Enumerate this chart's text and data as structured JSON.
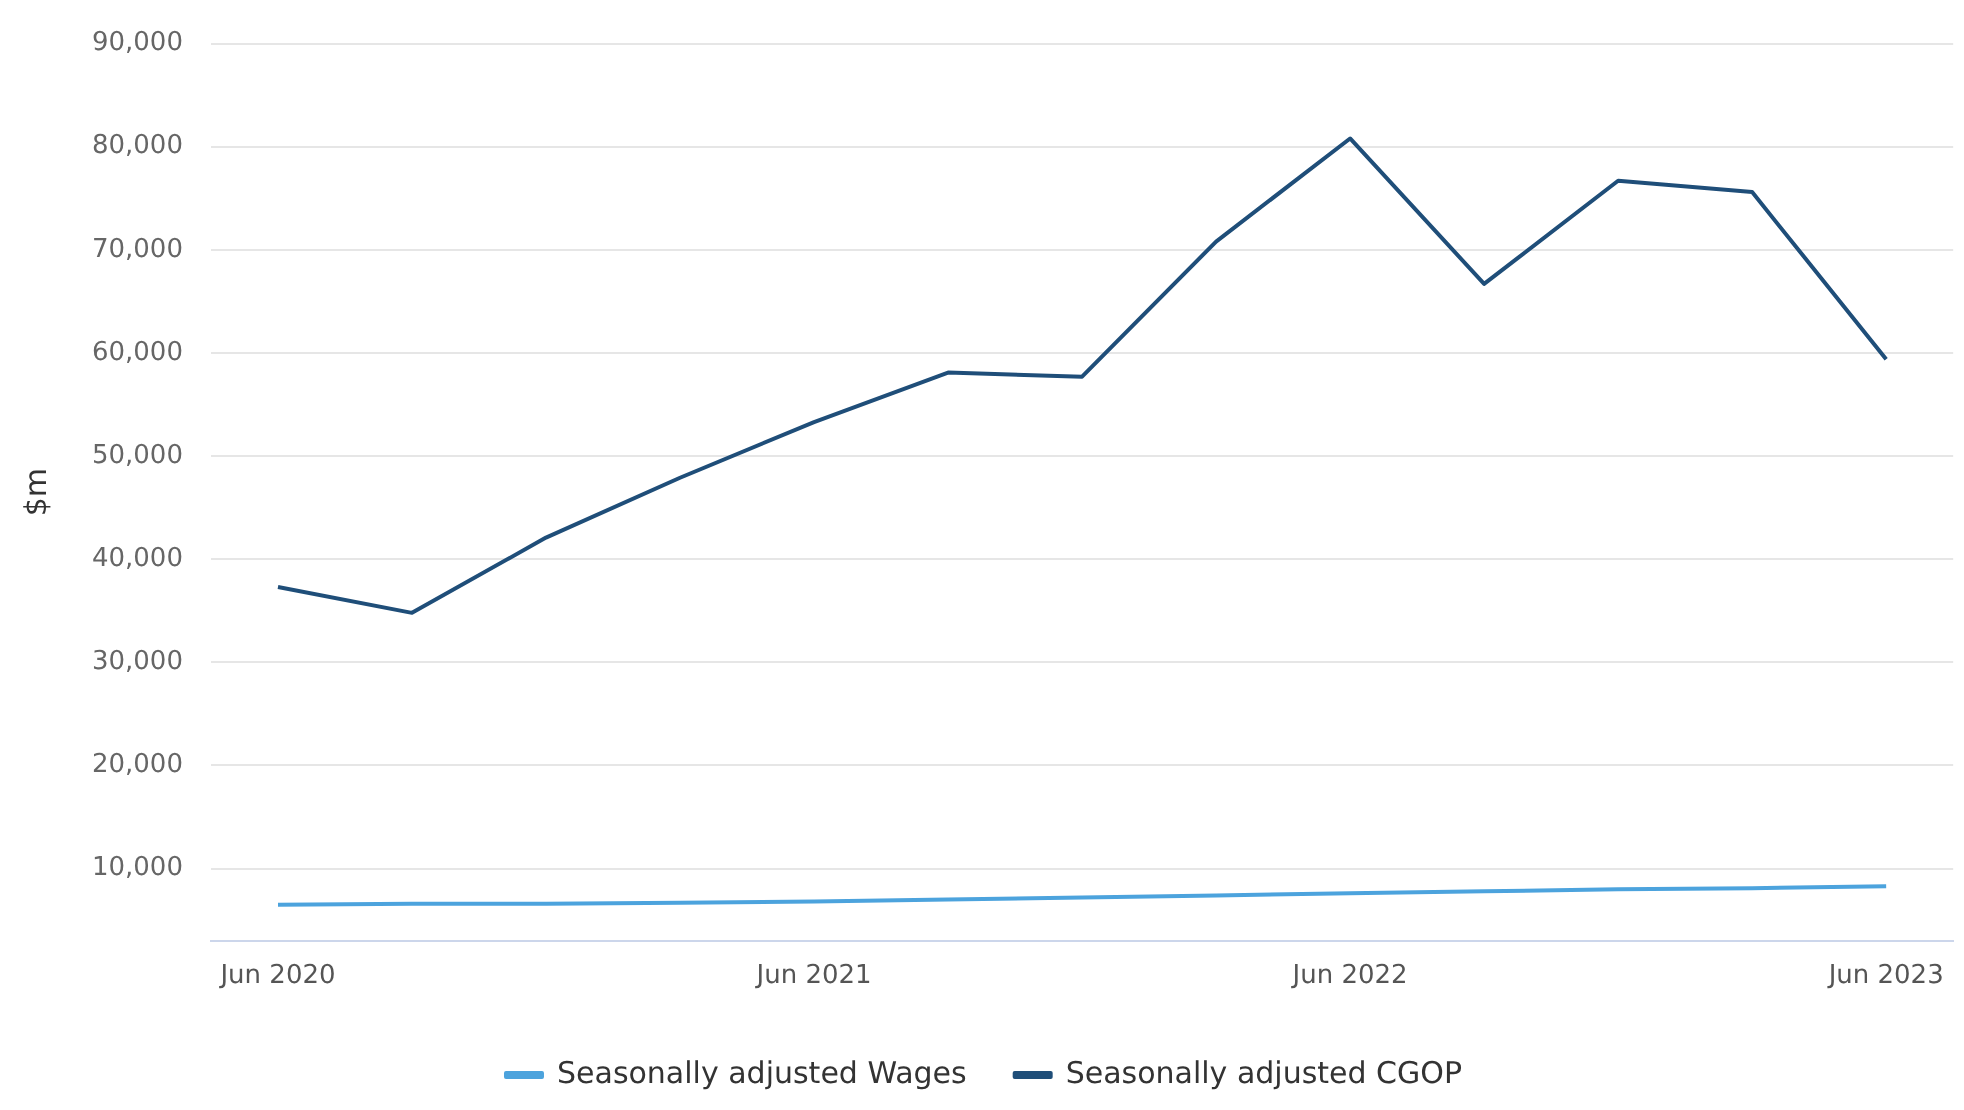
{
  "chart_data": {
    "type": "line",
    "ylabel": "$m",
    "categories": [
      "Jun 2020",
      null,
      null,
      null,
      "Jun 2021",
      null,
      null,
      null,
      "Jun 2022",
      null,
      null,
      null,
      "Jun 2023"
    ],
    "series": [
      {
        "name": "Seasonally adjusted Wages",
        "color": "#4ca3dd",
        "values": [
          6500,
          6600,
          6600,
          6700,
          6800,
          7000,
          7200,
          7400,
          7600,
          7800,
          8000,
          8100,
          8300
        ]
      },
      {
        "name": "Seasonally adjusted CGOP",
        "color": "#1f4e79",
        "values": [
          37300,
          34800,
          42100,
          47900,
          53300,
          58100,
          57700,
          70800,
          80800,
          66700,
          76700,
          75600,
          59400
        ]
      }
    ],
    "ylim": [
      3000,
      90000
    ],
    "yticks": [
      {
        "value": 10000,
        "label": "10,000"
      },
      {
        "value": 20000,
        "label": "20,000"
      },
      {
        "value": 30000,
        "label": "30,000"
      },
      {
        "value": 40000,
        "label": "40,000"
      },
      {
        "value": 50000,
        "label": "50,000"
      },
      {
        "value": 60000,
        "label": "60,000"
      },
      {
        "value": 70000,
        "label": "70,000"
      },
      {
        "value": 80000,
        "label": "80,000"
      },
      {
        "value": 90000,
        "label": "90,000"
      }
    ],
    "grid": "y",
    "legend": "bottom",
    "marker": "none",
    "line_style": "solid"
  }
}
